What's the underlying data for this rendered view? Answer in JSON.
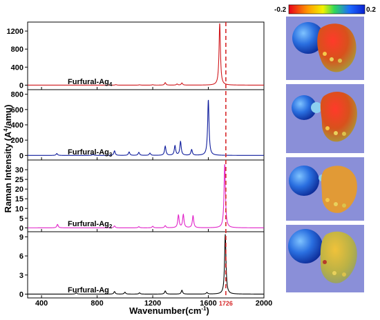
{
  "chart_data": {
    "type": "line",
    "xlabel": "Wavenumber(cm",
    "xlabel_sup": "-1",
    "xlabel_end": ")",
    "ylabel_pre": "Raman Intensity (A",
    "ylabel_sup": "4",
    "ylabel_post": "/amu)",
    "xlim": [
      300,
      2000
    ],
    "x_ticks": [
      "400",
      "800",
      "1200",
      "1600",
      "2000"
    ],
    "reference_line": {
      "x": 1726,
      "label": "1726",
      "color": "#d62728"
    },
    "colorbar": {
      "min_label": "-0.2",
      "max_label": "0.2"
    },
    "panels": [
      {
        "name": "Furfural-Ag",
        "sub": "4",
        "color": "#d0161b",
        "ylim": [
          -100,
          1400
        ],
        "y_ticks": [
          0,
          400,
          800,
          1200
        ],
        "peaks": [
          [
            935,
            12
          ],
          [
            1105,
            8
          ],
          [
            1200,
            10
          ],
          [
            1290,
            55
          ],
          [
            1375,
            25
          ],
          [
            1410,
            48
          ],
          [
            1682,
            1380
          ]
        ]
      },
      {
        "name": "Furfural-Ag",
        "sub": "3",
        "color": "#0d1b9c",
        "ylim": [
          -60,
          860
        ],
        "y_ticks": [
          0,
          200,
          400,
          600,
          800
        ],
        "peaks": [
          [
            510,
            25
          ],
          [
            770,
            12
          ],
          [
            925,
            60
          ],
          [
            1030,
            45
          ],
          [
            1100,
            40
          ],
          [
            1180,
            30
          ],
          [
            1290,
            120
          ],
          [
            1360,
            125
          ],
          [
            1400,
            180
          ],
          [
            1480,
            75
          ],
          [
            1600,
            730
          ]
        ]
      },
      {
        "name": "Furfural-Ag",
        "sub": "2",
        "color": "#e020c8",
        "ylim": [
          -2,
          35
        ],
        "y_ticks": [
          0,
          5,
          10,
          15,
          20,
          25,
          30
        ],
        "peaks": [
          [
            515,
            1.8
          ],
          [
            925,
            1
          ],
          [
            1100,
            0.6
          ],
          [
            1200,
            0.8
          ],
          [
            1290,
            1.1
          ],
          [
            1385,
            6.5
          ],
          [
            1420,
            6.8
          ],
          [
            1490,
            6.2
          ],
          [
            1718,
            33
          ]
        ]
      },
      {
        "name": "Furfural-Ag",
        "sub": "",
        "color": "#000000",
        "ylim": [
          -0.6,
          9.8
        ],
        "y_ticks": [
          0,
          3,
          6,
          9
        ],
        "peaks": [
          [
            650,
            0.2
          ],
          [
            925,
            0.4
          ],
          [
            1000,
            0.3
          ],
          [
            1105,
            0.2
          ],
          [
            1290,
            0.5
          ],
          [
            1410,
            0.6
          ],
          [
            1590,
            0.25
          ],
          [
            1722,
            9.4
          ]
        ]
      }
    ]
  },
  "images": [
    {
      "alt": "ESP map Furfural-Ag4"
    },
    {
      "alt": "ESP map Furfural-Ag3"
    },
    {
      "alt": "ESP map Furfural-Ag2"
    },
    {
      "alt": "ESP map Furfural-Ag"
    }
  ]
}
